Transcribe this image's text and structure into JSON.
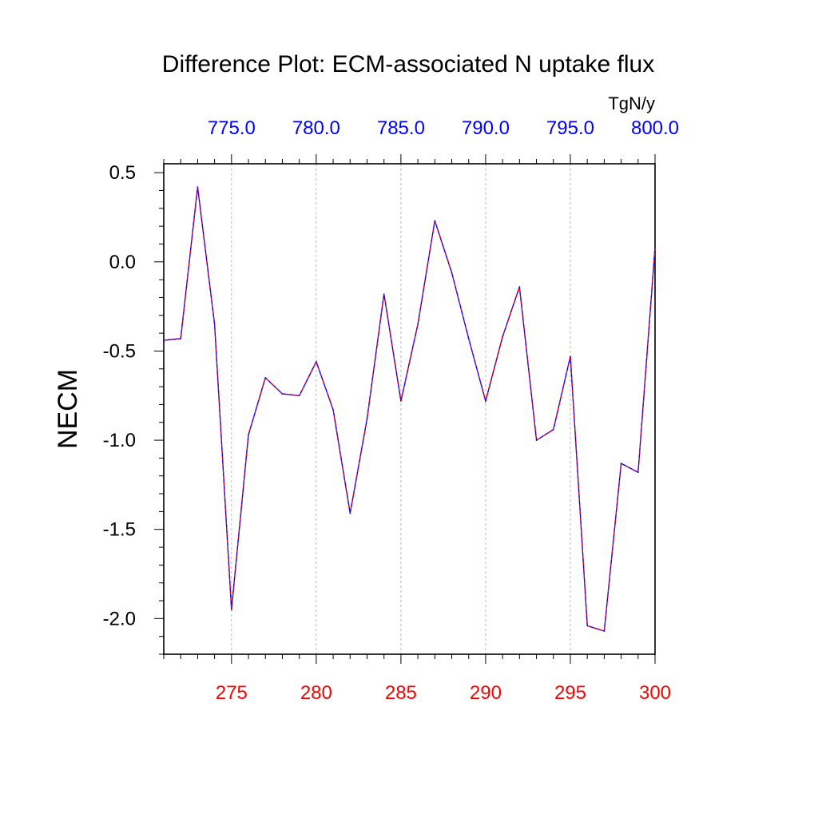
{
  "chart_data": {
    "type": "line",
    "title": "Difference Plot: ECM-associated N uptake flux",
    "units": "TgN/y",
    "ylabel": "NECM",
    "xlabel": "",
    "x": [
      271,
      272,
      273,
      274,
      275,
      276,
      277,
      278,
      279,
      280,
      281,
      282,
      283,
      284,
      285,
      286,
      287,
      288,
      289,
      290,
      291,
      292,
      293,
      294,
      295,
      296,
      297,
      298,
      299,
      300
    ],
    "series": [
      {
        "values": [
          -0.44,
          -0.43,
          0.42,
          -0.35,
          -1.95,
          -0.97,
          -0.65,
          -0.74,
          -0.75,
          -0.56,
          -0.83,
          -1.41,
          -0.88,
          -0.18,
          -0.78,
          -0.35,
          0.23,
          -0.06,
          -0.43,
          -0.78,
          -0.42,
          -0.14,
          -1.0,
          -0.94,
          -0.53,
          -2.04,
          -2.07,
          -1.13,
          -1.18,
          0.08
        ],
        "colors": [
          "#0000ff",
          "#ff0000"
        ]
      }
    ],
    "xlim": [
      271,
      300
    ],
    "ylim": [
      -2.2,
      0.55
    ],
    "x_ticks": [
      275,
      280,
      285,
      290,
      295,
      300
    ],
    "x_tick_labels": [
      "275",
      "280",
      "285",
      "290",
      "295",
      "300"
    ],
    "y_ticks": [
      0.5,
      0.0,
      -0.5,
      -1.0,
      -1.5,
      -2.0
    ],
    "y_tick_labels": [
      "0.5",
      "0.0",
      "-0.5",
      "-1.0",
      "-1.5",
      "-2.0"
    ],
    "top_axis": {
      "range": [
        771.0,
        800.0
      ],
      "ticks": [
        775.0,
        780.0,
        785.0,
        790.0,
        795.0,
        800.0
      ],
      "tick_labels": [
        "775.0",
        "780.0",
        "785.0",
        "790.0",
        "795.0",
        "800.0"
      ],
      "color": "#0000ff"
    },
    "bottom_tick_color": "#ff0000",
    "grid": "vertical dashed at major x ticks",
    "legend": "none"
  }
}
